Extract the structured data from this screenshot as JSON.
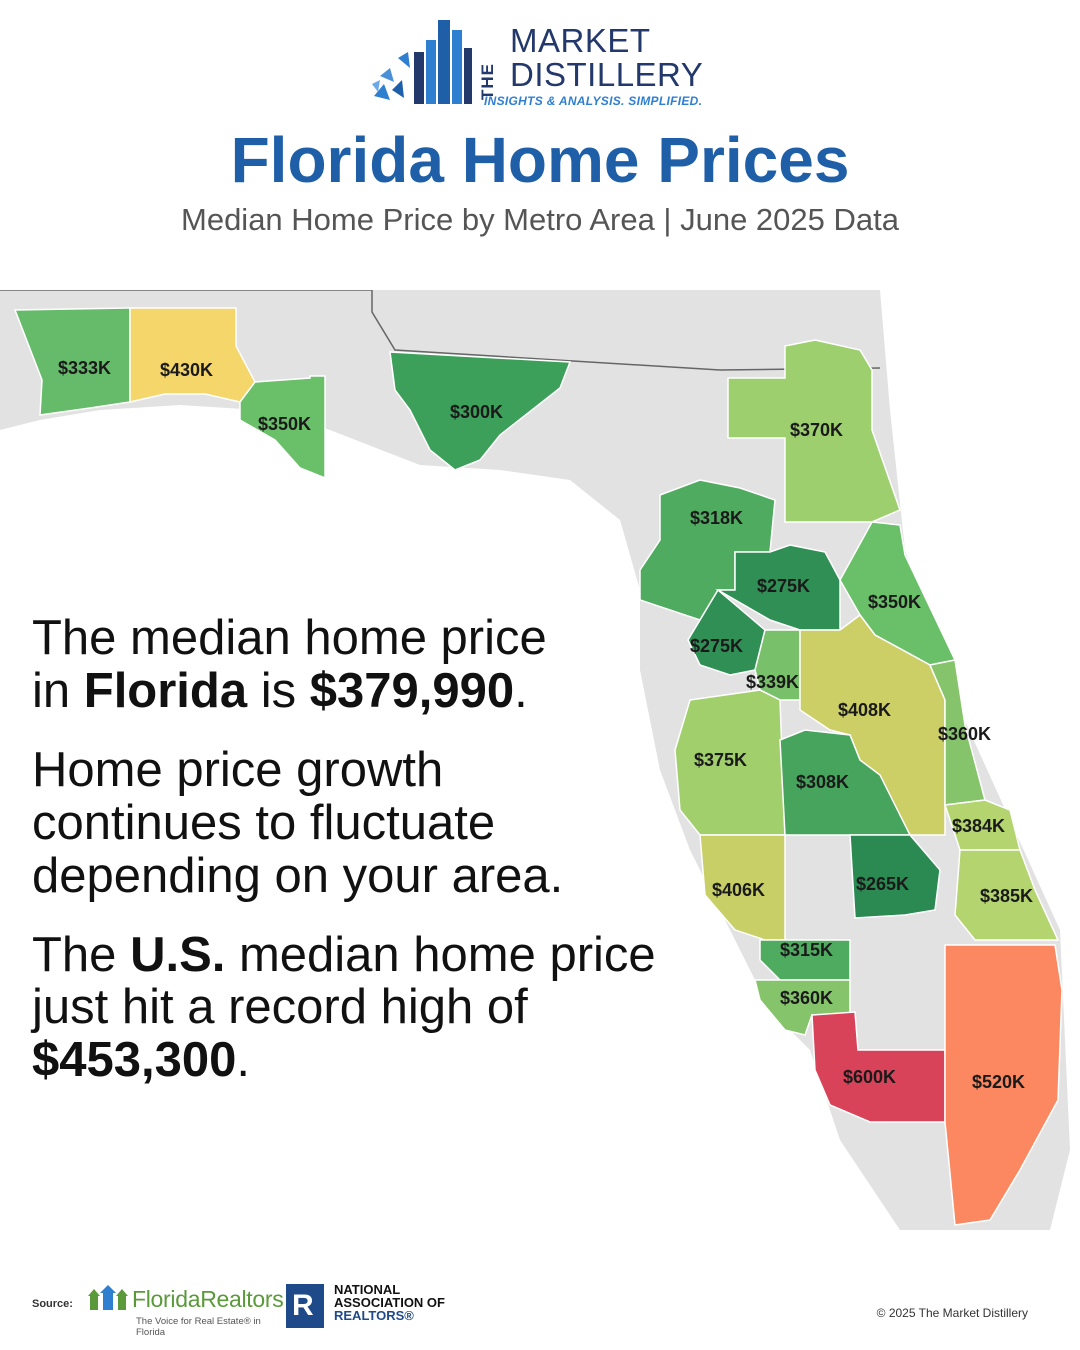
{
  "brand": {
    "vertical_word": "THE",
    "line1": "MARKET",
    "line2": "DISTILLERY",
    "tagline": "INSIGHTS & ANALYSIS. SIMPLIFIED."
  },
  "header": {
    "title": "Florida Home Prices",
    "subtitle": "Median Home Price by Metro Area | June 2025 Data"
  },
  "map": {
    "regions": [
      {
        "label": "$333K",
        "color": "#66bb6a"
      },
      {
        "label": "$430K",
        "color": "#f5d66b"
      },
      {
        "label": "$350K",
        "color": "#6abf69"
      },
      {
        "label": "$300K",
        "color": "#3c9f5a"
      },
      {
        "label": "$370K",
        "color": "#9dcf6f"
      },
      {
        "label": "$318K",
        "color": "#4fab5f"
      },
      {
        "label": "$275K",
        "color": "#2f8f55"
      },
      {
        "label": "$350K",
        "color": "#6abf69"
      },
      {
        "label": "$275K",
        "color": "#2f8f55"
      },
      {
        "label": "$339K",
        "color": "#79c06a"
      },
      {
        "label": "$408K",
        "color": "#cccf66"
      },
      {
        "label": "$360K",
        "color": "#86c46b"
      },
      {
        "label": "$375K",
        "color": "#a1cf6c"
      },
      {
        "label": "$308K",
        "color": "#46a45d"
      },
      {
        "label": "$384K",
        "color": "#b3d46e"
      },
      {
        "label": "$406K",
        "color": "#c8cf66"
      },
      {
        "label": "$265K",
        "color": "#2a8a52"
      },
      {
        "label": "$385K",
        "color": "#b3d46e"
      },
      {
        "label": "$315K",
        "color": "#4fab5f"
      },
      {
        "label": "$360K",
        "color": "#86c46b"
      },
      {
        "label": "$600K",
        "color": "#d8435a"
      },
      {
        "label": "$520K",
        "color": "#fb8860"
      }
    ]
  },
  "facts": {
    "p1_a": "The median home price",
    "p1_b": "in ",
    "p1_state": "Florida",
    "p1_c": " is ",
    "p1_value": "$379,990",
    "p1_d": ".",
    "p2_a": "Home price growth",
    "p2_b": "continues to fluctuate",
    "p2_c": "depending on your area.",
    "p3_a": "The ",
    "p3_us": "U.S.",
    "p3_b": " median home price",
    "p3_c": "just hit a record high of",
    "p3_value": "$453,300",
    "p3_d": "."
  },
  "footer": {
    "source_label": "Source:",
    "fr_name": "FloridaRealtors",
    "fr_tagline": "The Voice for Real Estate® in Florida",
    "nar_letter": "R",
    "nar_line1": "NATIONAL",
    "nar_line2": "ASSOCIATION OF",
    "nar_line3": "REALTORS®",
    "copyright": "© 2025 The Market Distillery"
  }
}
